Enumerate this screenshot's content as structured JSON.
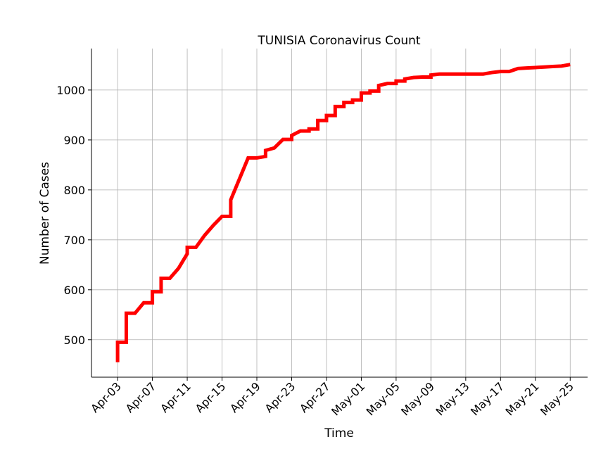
{
  "chart_data": {
    "type": "line",
    "title": "TUNISIA Coronavirus Count",
    "xlabel": "Time",
    "ylabel": "Number of Cases",
    "ylim": [
      425,
      1083
    ],
    "xlim": [
      "2020-03-31",
      "2020-05-27"
    ],
    "grid": true,
    "line_color": "#ff0000",
    "step": true,
    "x_ticks": [
      "Apr-03",
      "Apr-07",
      "Apr-11",
      "Apr-15",
      "Apr-19",
      "Apr-23",
      "Apr-27",
      "May-01",
      "May-05",
      "May-09",
      "May-13",
      "May-17",
      "May-21",
      "May-25"
    ],
    "x_tick_dates": [
      "2020-04-03",
      "2020-04-07",
      "2020-04-11",
      "2020-04-15",
      "2020-04-19",
      "2020-04-23",
      "2020-04-27",
      "2020-05-01",
      "2020-05-05",
      "2020-05-09",
      "2020-05-13",
      "2020-05-17",
      "2020-05-21",
      "2020-05-25"
    ],
    "y_ticks": [
      500,
      600,
      700,
      800,
      900,
      1000
    ],
    "series": [
      {
        "x": [
          "2020-04-03",
          "2020-04-03",
          "2020-04-04",
          "2020-04-04",
          "2020-04-05",
          "2020-04-06",
          "2020-04-07",
          "2020-04-07",
          "2020-04-08",
          "2020-04-08",
          "2020-04-09",
          "2020-04-10",
          "2020-04-11",
          "2020-04-11",
          "2020-04-12",
          "2020-04-13",
          "2020-04-14",
          "2020-04-15",
          "2020-04-16",
          "2020-04-16",
          "2020-04-18",
          "2020-04-19",
          "2020-04-20",
          "2020-04-20",
          "2020-04-21",
          "2020-04-22",
          "2020-04-23",
          "2020-04-23",
          "2020-04-24",
          "2020-04-25",
          "2020-04-25",
          "2020-04-26",
          "2020-04-26",
          "2020-04-27",
          "2020-04-27",
          "2020-04-28",
          "2020-04-28",
          "2020-04-29",
          "2020-04-29",
          "2020-04-30",
          "2020-04-30",
          "2020-05-01",
          "2020-05-01",
          "2020-05-02",
          "2020-05-02",
          "2020-05-03",
          "2020-05-03",
          "2020-05-04",
          "2020-05-05",
          "2020-05-05",
          "2020-05-06",
          "2020-05-06",
          "2020-05-07",
          "2020-05-08",
          "2020-05-09",
          "2020-05-09",
          "2020-05-10",
          "2020-05-11",
          "2020-05-15",
          "2020-05-16",
          "2020-05-17",
          "2020-05-18",
          "2020-05-19",
          "2020-05-20",
          "2020-05-21",
          "2020-05-22",
          "2020-05-23",
          "2020-05-24",
          "2020-05-25"
        ],
        "y": [
          455,
          495,
          495,
          553,
          553,
          574,
          574,
          596,
          596,
          623,
          623,
          643,
          672,
          685,
          685,
          709,
          729,
          747,
          747,
          780,
          864,
          864,
          867,
          879,
          884,
          901,
          901,
          909,
          918,
          918,
          922,
          922,
          939,
          939,
          949,
          949,
          967,
          967,
          975,
          975,
          980,
          980,
          994,
          994,
          998,
          998,
          1009,
          1013,
          1013,
          1018,
          1018,
          1022,
          1025,
          1026,
          1026,
          1030,
          1032,
          1032,
          1032,
          1035,
          1037,
          1037,
          1043,
          1044,
          1045,
          1046,
          1047,
          1048,
          1051
        ]
      }
    ]
  }
}
